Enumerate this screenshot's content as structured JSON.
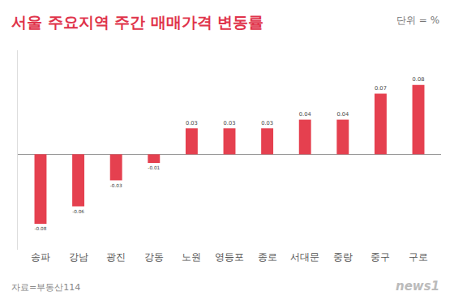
{
  "chart_data": {
    "type": "bar",
    "title": "서울 주요지역 주간 매매가격 변동률",
    "unit_note": "단위 = %",
    "source": "자료=부동산114",
    "credit": "news1",
    "categories": [
      "송파",
      "강남",
      "광진",
      "강동",
      "노원",
      "영등포",
      "종로",
      "서대문",
      "중랑",
      "중구",
      "구로"
    ],
    "values": [
      -0.08,
      -0.06,
      -0.03,
      -0.01,
      0.03,
      0.03,
      0.03,
      0.04,
      0.04,
      0.07,
      0.08
    ],
    "color": "#e5404f",
    "ylim": [
      -0.11,
      0.12
    ],
    "grid": false,
    "data_labels": true,
    "tick_labels": "x"
  }
}
